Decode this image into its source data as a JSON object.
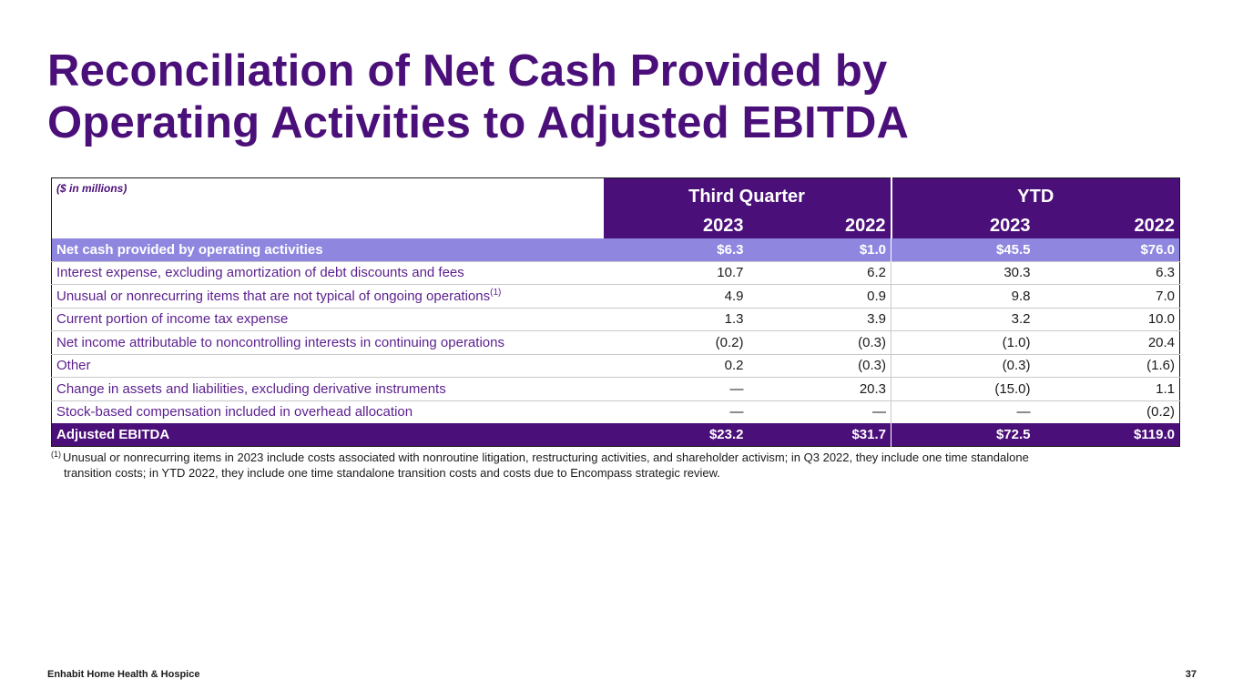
{
  "title": {
    "line1": "Reconciliation of Net Cash Provided by",
    "line2": "Operating Activities to Adjusted EBITDA"
  },
  "table": {
    "units": "($ in millions)",
    "groups": [
      "Third Quarter",
      "YTD"
    ],
    "years": [
      "2023",
      "2022",
      "2023",
      "2022"
    ],
    "rows": [
      {
        "label": "Net cash provided by operating activities",
        "values": [
          "$6.3",
          "$1.0",
          "$45.5",
          "$76.0"
        ]
      },
      {
        "label": "Interest expense, excluding amortization of debt discounts and fees",
        "values": [
          "10.7",
          "6.2",
          "30.3",
          "6.3"
        ]
      },
      {
        "label": "Unusual or nonrecurring items that are not typical of ongoing operations",
        "note": "(1)",
        "values": [
          "4.9",
          "0.9",
          "9.8",
          "7.0"
        ]
      },
      {
        "label": "Current portion of income tax expense",
        "values": [
          "1.3",
          "3.9",
          "3.2",
          "10.0"
        ]
      },
      {
        "label": "Net income attributable to noncontrolling interests in continuing operations",
        "values": [
          "(0.2)",
          "(0.3)",
          "(1.0)",
          "20.4"
        ]
      },
      {
        "label": "Other",
        "values": [
          "0.2",
          "(0.3)",
          "(0.3)",
          "(1.6)"
        ]
      },
      {
        "label": "Change in assets and liabilities, excluding derivative instruments",
        "values": [
          "—",
          "20.3",
          "(15.0)",
          "1.1"
        ]
      },
      {
        "label": "Stock-based compensation included in overhead allocation",
        "values": [
          "—",
          "—",
          "—",
          "(0.2)"
        ]
      },
      {
        "label": "Adjusted EBITDA",
        "values": [
          "$23.2",
          "$31.7",
          "$72.5",
          "$119.0"
        ]
      }
    ]
  },
  "footnote": {
    "marker": "(1)",
    "line1": "Unusual or nonrecurring items in 2023 include costs associated with nonroutine litigation, restructuring activities, and shareholder activism; in Q3 2022, they include one time standalone",
    "line2": "transition costs; in YTD 2022, they include one time standalone transition costs and costs due to Encompass strategic review."
  },
  "footer": {
    "company": "Enhabit Home Health & Hospice",
    "page": "37"
  },
  "colors": {
    "brand_purple": "#4b0f7a",
    "highlight_lavender": "#8f86e0"
  }
}
